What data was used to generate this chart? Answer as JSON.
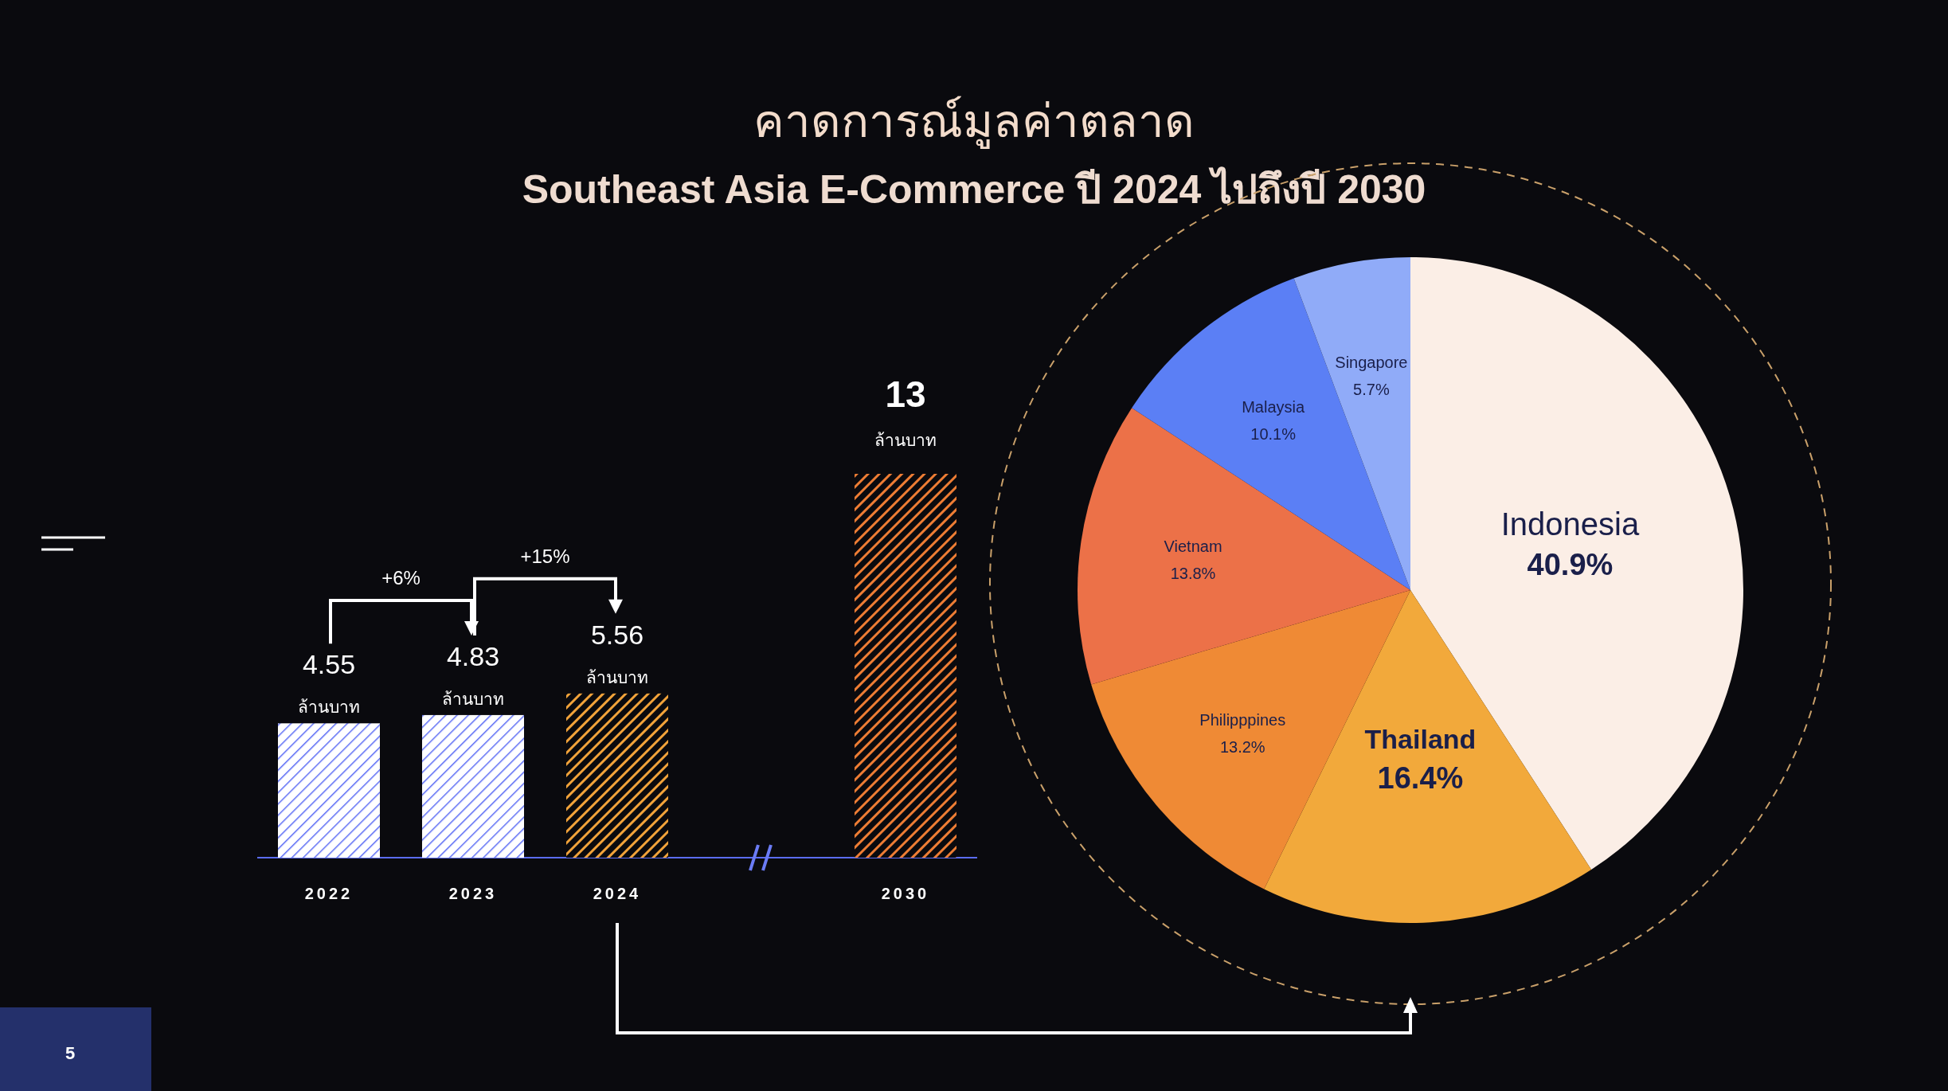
{
  "chart_data": [
    {
      "type": "bar",
      "title": "คาดการณ์มูลค่าตลาด",
      "subtitle": "Southeast Asia E-Commerce ปี 2024 ไปถึงปี 2030",
      "categories": [
        "2022",
        "2023",
        "2024",
        null,
        "2030"
      ],
      "values": [
        4.55,
        4.83,
        5.56,
        null,
        13
      ],
      "colors": [
        "#5b6cf5",
        "#5b6cf5",
        "#f2a33a",
        null,
        "#ee7d34"
      ],
      "value_labels": [
        "4.55 ล้านบาท",
        "4.83 ล้านบาท",
        "5.56 ล้านบาท",
        null,
        "13 ล้านบาท"
      ],
      "annotations": [
        "+6%",
        "+15%",
        "5"
      ]
    },
    {
      "type": "pie",
      "categories": [
        "Indonesia",
        "Thailand",
        "Philipppines",
        "Vietnam",
        "Malaysia",
        "Singapore"
      ],
      "values": [
        40.9,
        16.4,
        13.2,
        13.8,
        10.1,
        5.7
      ],
      "colors": [
        "#fbeee6",
        "#f2a93b",
        "#ef8a35",
        "#ec7148",
        "#5b7ff5",
        "#90abf8"
      ],
      "value_labels": [
        "40.9%",
        "16.4%",
        "13.2%",
        "13.8%",
        "10.1%",
        "5.7%"
      ]
    }
  ]
}
